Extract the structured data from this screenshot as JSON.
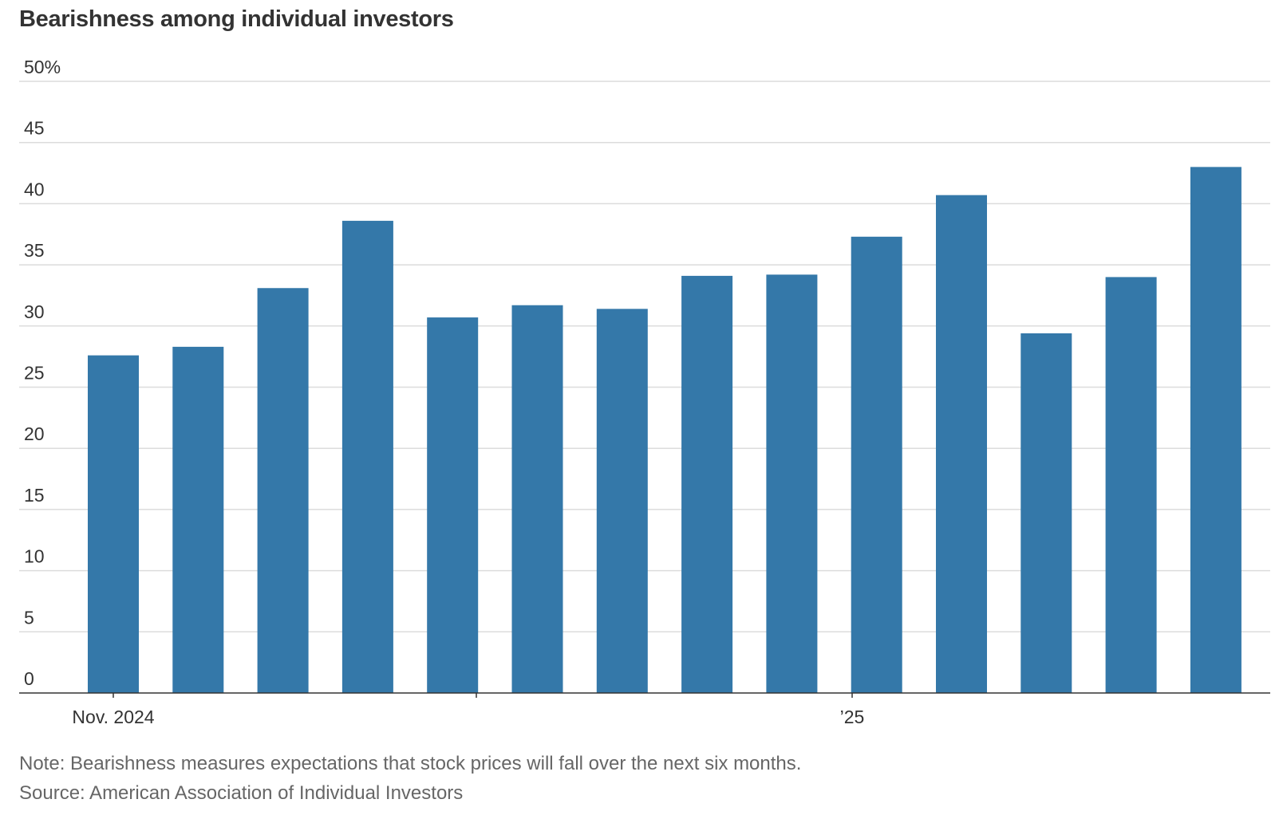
{
  "chart_data": {
    "type": "bar",
    "title": "Bearishness among individual investors",
    "categories": [
      "",
      "",
      "",
      "",
      "",
      "",
      "",
      "",
      "",
      "",
      "",
      "",
      "",
      ""
    ],
    "values": [
      27.6,
      28.3,
      33.1,
      38.6,
      30.7,
      31.7,
      31.4,
      34.1,
      34.2,
      37.3,
      40.7,
      29.4,
      34.0,
      43.0
    ],
    "xlabel": "",
    "ylabel": "",
    "ylim": [
      0,
      50
    ],
    "yticks": [
      0,
      5,
      10,
      15,
      20,
      25,
      30,
      35,
      40,
      45,
      50
    ],
    "ytick_labels": [
      "0",
      "5",
      "10",
      "15",
      "20",
      "25",
      "30",
      "35",
      "40",
      "45",
      "50%"
    ],
    "x_tick_labels": [
      "Nov. 2024",
      "’25"
    ],
    "grid": true,
    "bar_color": "#3478a9",
    "grid_color": "#dcdcdc",
    "axis_color": "#333333"
  },
  "notes": {
    "note": "Note: Bearishness measures expectations that stock prices will fall over the next six months.",
    "source": "Source: American Association of Individual Investors"
  }
}
